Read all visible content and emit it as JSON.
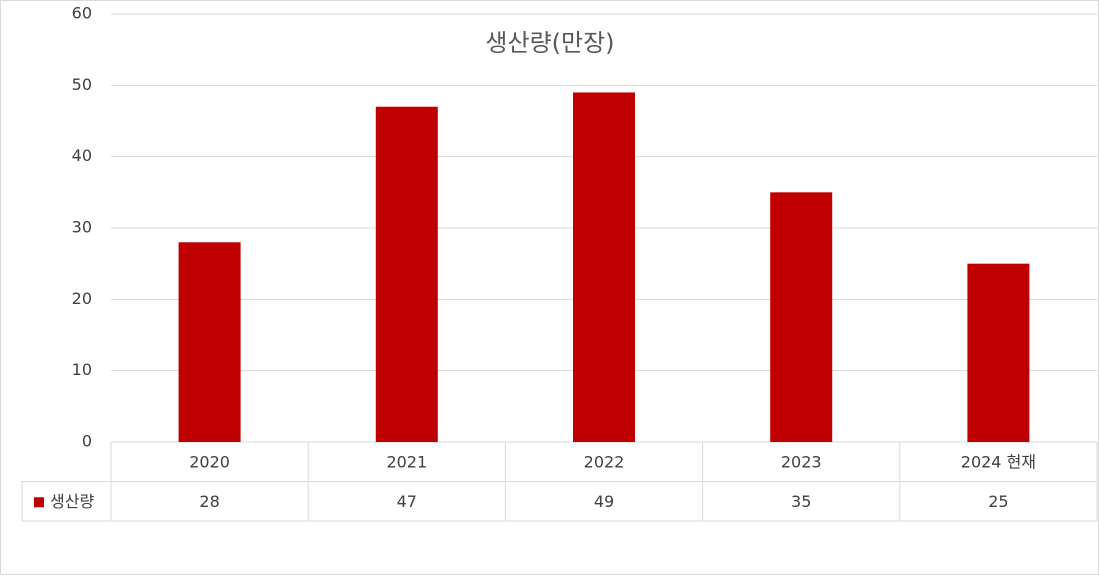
{
  "chart_data": {
    "type": "bar",
    "title": "생산량(만장)",
    "categories": [
      "2020",
      "2021",
      "2022",
      "2023",
      "2024 현재"
    ],
    "series": [
      {
        "name": "생산량",
        "color": "#c00000",
        "values": [
          28,
          47,
          49,
          35,
          25
        ]
      }
    ],
    "ylim": [
      0,
      60
    ],
    "yticks": [
      0,
      10,
      20,
      30,
      40,
      50,
      60
    ],
    "grid": true,
    "data_table": true
  }
}
